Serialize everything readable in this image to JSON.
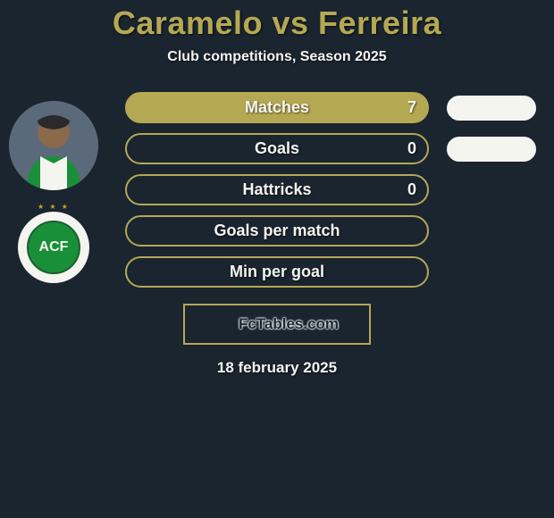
{
  "title": "Caramelo vs Ferreira",
  "subtitle": "Club competitions, Season 2025",
  "player_left": {
    "avatar_name": "player-caramelo",
    "club_badge_text": "ACF",
    "club_stars": "★ ★ ★"
  },
  "stats": [
    {
      "label": "Matches",
      "left_value": "7",
      "left_filled": true,
      "right_filled": true,
      "show_right": true
    },
    {
      "label": "Goals",
      "left_value": "0",
      "left_filled": false,
      "right_filled": true,
      "show_right": true
    },
    {
      "label": "Hattricks",
      "left_value": "0",
      "left_filled": false,
      "right_filled": false,
      "show_right": false
    },
    {
      "label": "Goals per match",
      "left_value": "",
      "left_filled": false,
      "right_filled": false,
      "show_right": false
    },
    {
      "label": "Min per goal",
      "left_value": "",
      "left_filled": false,
      "right_filled": false,
      "show_right": false
    }
  ],
  "footer_brand": "FcTables.com",
  "date": "18 february 2025",
  "colors": {
    "accent": "#b5a853",
    "background": "#1a2530",
    "light": "#f5f5f0",
    "club_green": "#1a8f3a"
  }
}
